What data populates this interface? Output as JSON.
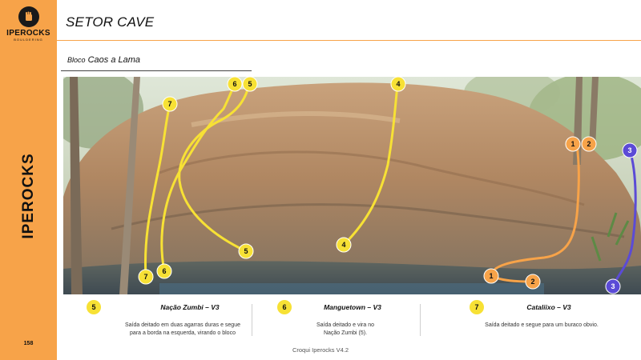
{
  "brand": {
    "logo_name": "IPEROCKS",
    "logo_sub": "BOULDERING",
    "vertical_name": "IPEROCKS",
    "page_number": "158"
  },
  "header": {
    "sector_title": "SETOR CAVE",
    "block_prefix": "Bloco",
    "block_name": "Caos a Lama"
  },
  "photo": {
    "markers": [
      {
        "label": "6",
        "color": "#f7e135"
      },
      {
        "label": "5",
        "color": "#f7e135"
      },
      {
        "label": "7",
        "color": "#f7e135"
      },
      {
        "label": "4",
        "color": "#f7e135"
      },
      {
        "label": "4",
        "color": "#f7e135"
      },
      {
        "label": "5",
        "color": "#f7e135"
      },
      {
        "label": "6",
        "color": "#f7e135"
      },
      {
        "label": "7",
        "color": "#f7e135"
      },
      {
        "label": "1",
        "color": "#f7a349"
      },
      {
        "label": "2",
        "color": "#f7a349"
      },
      {
        "label": "1",
        "color": "#f7a349"
      },
      {
        "label": "2",
        "color": "#f7a349"
      },
      {
        "label": "3",
        "color": "#5b4bd6"
      },
      {
        "label": "3",
        "color": "#5b4bd6"
      }
    ]
  },
  "legend": [
    {
      "number": "5",
      "name": "Nação Zumbi – V3",
      "description_lines": [
        "Saída deitado em duas agarras duras e segue",
        "para a borda na esquerda, virando o bloco"
      ]
    },
    {
      "number": "6",
      "name": "Manguetown – V3",
      "description_lines": [
        "Saída deitado e vira no",
        "Nação Zumbi (5)."
      ]
    },
    {
      "number": "7",
      "name": "Cataliixo – V3",
      "description_lines": [
        "Saída deitado e segue para um buraco obvio."
      ]
    }
  ],
  "footer": "Croqui Iperocks V4.2",
  "colors": {
    "accent_orange": "#f7a349",
    "route_yellow": "#f7e135",
    "route_purple": "#5b4bd6"
  }
}
